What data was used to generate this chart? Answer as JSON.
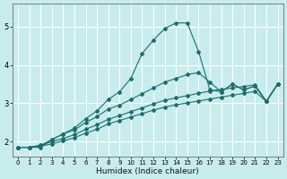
{
  "xlabel": "Humidex (Indice chaleur)",
  "bg_color": "#c8ecec",
  "line_color": "#1a6e6e",
  "grid_color": "#ffffff",
  "xlim": [
    -0.5,
    23.5
  ],
  "ylim": [
    1.6,
    5.6
  ],
  "yticks": [
    2,
    3,
    4,
    5
  ],
  "xticks": [
    0,
    1,
    2,
    3,
    4,
    5,
    6,
    7,
    8,
    9,
    10,
    11,
    12,
    13,
    14,
    15,
    16,
    17,
    18,
    19,
    20,
    21,
    22,
    23
  ],
  "lines": [
    {
      "x": [
        0,
        1,
        2,
        3,
        4,
        5,
        6,
        7,
        8,
        9,
        10,
        11,
        12,
        13,
        14,
        15,
        16,
        17,
        18,
        19,
        20,
        21,
        22,
        23
      ],
      "y": [
        1.85,
        1.85,
        1.85,
        2.05,
        2.2,
        2.35,
        2.6,
        2.8,
        3.1,
        3.3,
        3.65,
        4.3,
        4.65,
        4.95,
        5.1,
        5.1,
        4.35,
        3.35,
        3.3,
        3.5,
        3.35,
        3.45,
        3.05,
        3.5
      ]
    },
    {
      "x": [
        0,
        1,
        2,
        3,
        4,
        5,
        6,
        7,
        8,
        9,
        10,
        11,
        12,
        13,
        14,
        15,
        16,
        17,
        18,
        19,
        20,
        21,
        22,
        23
      ],
      "y": [
        1.85,
        1.85,
        1.9,
        2.05,
        2.2,
        2.3,
        2.5,
        2.65,
        2.85,
        2.95,
        3.1,
        3.25,
        3.4,
        3.55,
        3.65,
        3.75,
        3.8,
        3.55,
        3.3,
        3.5,
        3.35,
        3.45,
        3.05,
        3.5
      ]
    },
    {
      "x": [
        0,
        1,
        2,
        3,
        4,
        5,
        6,
        7,
        8,
        9,
        10,
        11,
        12,
        13,
        14,
        15,
        16,
        17,
        18,
        19,
        20,
        21,
        22,
        23
      ],
      "y": [
        1.85,
        1.85,
        1.9,
        2.0,
        2.08,
        2.18,
        2.32,
        2.44,
        2.58,
        2.68,
        2.78,
        2.88,
        2.98,
        3.08,
        3.14,
        3.2,
        3.26,
        3.32,
        3.36,
        3.4,
        3.44,
        3.48,
        3.05,
        3.5
      ]
    },
    {
      "x": [
        0,
        1,
        2,
        3,
        4,
        5,
        6,
        7,
        8,
        9,
        10,
        11,
        12,
        13,
        14,
        15,
        16,
        17,
        18,
        19,
        20,
        21,
        22,
        23
      ],
      "y": [
        1.85,
        1.85,
        1.88,
        1.94,
        2.02,
        2.1,
        2.22,
        2.32,
        2.46,
        2.55,
        2.64,
        2.73,
        2.82,
        2.9,
        2.96,
        3.01,
        3.06,
        3.11,
        3.16,
        3.21,
        3.26,
        3.31,
        3.05,
        3.5
      ]
    }
  ]
}
